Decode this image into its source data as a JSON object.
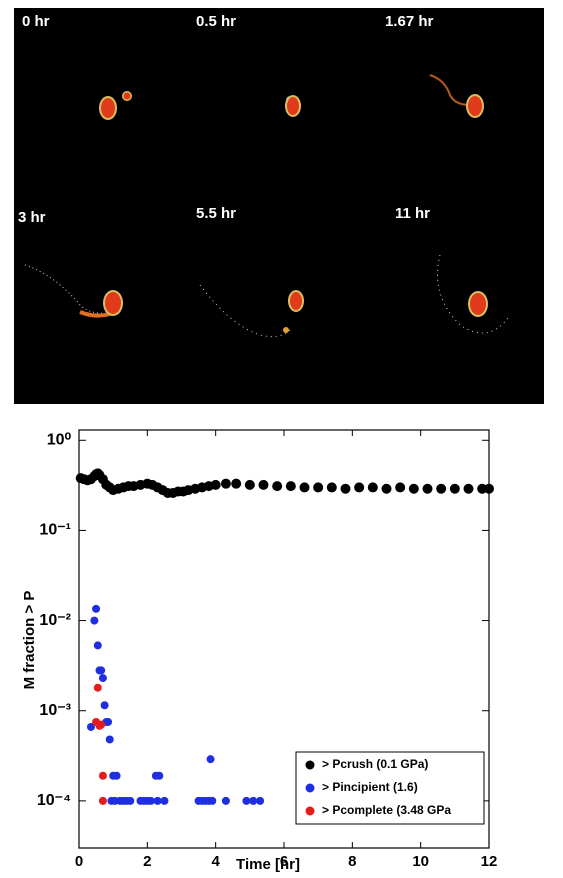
{
  "panels": {
    "labels": [
      "0 hr",
      "0.5 hr",
      "1.67 hr",
      "3 hr",
      "5.5 hr",
      "11 hr"
    ]
  },
  "chart_data": {
    "type": "scatter",
    "ylabel": "M fraction > P",
    "xlabel": "Time [hr]",
    "log_y": true,
    "xlim": [
      0,
      12
    ],
    "ylim": [
      3e-05,
      1.3
    ],
    "xticks": [
      0,
      2,
      4,
      6,
      8,
      10,
      12
    ],
    "yticks": [
      {
        "value": 1,
        "label": "10⁰"
      },
      {
        "value": 0.1,
        "label": "10⁻¹"
      },
      {
        "value": 0.01,
        "label": "10⁻²"
      },
      {
        "value": 0.001,
        "label": "10⁻³"
      },
      {
        "value": 0.0001,
        "label": "10⁻⁴"
      }
    ],
    "legend": "lower right",
    "series": [
      {
        "name": "> Pcrush (0.1 GPa)",
        "color": "#000000",
        "x": [
          0.05,
          0.15,
          0.25,
          0.35,
          0.45,
          0.5,
          0.55,
          0.6,
          0.7,
          0.8,
          0.9,
          1.0,
          1.15,
          1.3,
          1.45,
          1.6,
          1.8,
          2.0,
          2.15,
          2.3,
          2.45,
          2.6,
          2.75,
          2.9,
          3.05,
          3.2,
          3.4,
          3.6,
          3.8,
          4.0,
          4.3,
          4.6,
          5.0,
          5.4,
          5.8,
          6.2,
          6.6,
          7.0,
          7.4,
          7.8,
          8.2,
          8.6,
          9.0,
          9.4,
          9.8,
          10.2,
          10.6,
          11.0,
          11.4,
          11.8,
          12.0
        ],
        "values": [
          0.38,
          0.37,
          0.36,
          0.37,
          0.4,
          0.42,
          0.43,
          0.41,
          0.37,
          0.32,
          0.3,
          0.28,
          0.29,
          0.3,
          0.31,
          0.31,
          0.32,
          0.33,
          0.32,
          0.3,
          0.28,
          0.26,
          0.26,
          0.27,
          0.27,
          0.28,
          0.29,
          0.3,
          0.31,
          0.32,
          0.33,
          0.33,
          0.32,
          0.32,
          0.31,
          0.31,
          0.3,
          0.3,
          0.3,
          0.29,
          0.3,
          0.3,
          0.29,
          0.3,
          0.29,
          0.29,
          0.29,
          0.29,
          0.29,
          0.29,
          0.29
        ]
      },
      {
        "name": "> Pincipient (1.6)",
        "color": "#1f2fe0",
        "x": [
          0.35,
          0.45,
          0.5,
          0.55,
          0.6,
          0.65,
          0.7,
          0.75,
          0.8,
          0.85,
          0.9,
          0.95,
          1.0,
          1.05,
          1.1,
          1.2,
          1.3,
          1.4,
          1.5,
          1.8,
          1.9,
          2.0,
          2.1,
          2.25,
          2.3,
          2.35,
          2.5,
          3.5,
          3.6,
          3.7,
          3.8,
          3.85,
          3.9,
          4.3,
          4.9,
          5.1,
          5.3
        ],
        "values": [
          0.00066,
          0.01,
          0.0135,
          0.0053,
          0.0028,
          0.0028,
          0.0023,
          0.00115,
          0.00075,
          0.00075,
          0.00048,
          0.0001,
          0.00019,
          0.0001,
          0.00019,
          0.0001,
          0.0001,
          0.0001,
          0.0001,
          0.0001,
          0.0001,
          0.0001,
          0.0001,
          0.00019,
          0.0001,
          0.00019,
          0.0001,
          0.0001,
          0.0001,
          0.0001,
          0.0001,
          0.00029,
          0.0001,
          0.0001,
          0.0001,
          0.0001,
          0.0001
        ]
      },
      {
        "name": "> Pcomplete (3.48 GPa",
        "color": "#e51c1c",
        "x": [
          0.5,
          0.55,
          0.6,
          0.65,
          0.7,
          0.7
        ],
        "values": [
          0.00075,
          0.0018,
          0.00068,
          0.0007,
          0.00019,
          0.0001
        ]
      }
    ]
  }
}
